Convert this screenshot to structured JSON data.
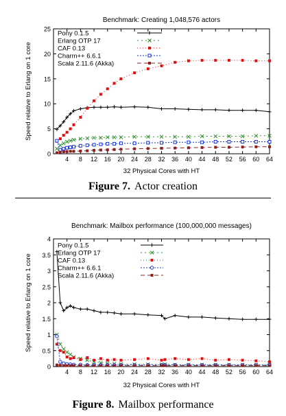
{
  "figures": [
    {
      "caption_label": "Figure 7.",
      "caption_text": "Actor creation",
      "chart_data": {
        "type": "line",
        "title": "Benchmark: Creating 1,048,576 actors",
        "xlabel": "32 Physical Cores with HT",
        "ylabel": "Speed relative to Erlang on 1 core",
        "xlim": [
          0,
          64
        ],
        "ylim": [
          0,
          25
        ],
        "xticks": [
          4,
          8,
          12,
          16,
          20,
          24,
          28,
          32,
          36,
          40,
          44,
          48,
          52,
          56,
          60,
          64
        ],
        "yticks": [
          0,
          5,
          10,
          15,
          20,
          25
        ],
        "grid": false,
        "legend_position": "top-left",
        "x": [
          1,
          2,
          3,
          4,
          5,
          6,
          8,
          10,
          12,
          14,
          16,
          18,
          20,
          24,
          28,
          32,
          36,
          40,
          44,
          48,
          52,
          56,
          60,
          64
        ],
        "series": [
          {
            "name": "Pony 0.1.5",
            "color": "#000000",
            "marker": "plus",
            "dash": "",
            "values": [
              4.9,
              5.6,
              6.4,
              7.3,
              8.0,
              8.6,
              9.0,
              9.2,
              9.3,
              9.3,
              9.3,
              9.4,
              9.3,
              9.4,
              9.3,
              9.0,
              9.0,
              8.9,
              8.8,
              8.8,
              8.7,
              8.7,
              8.7,
              8.4
            ]
          },
          {
            "name": "Erlang OTP 17",
            "color": "#2f8f2f",
            "marker": "cross",
            "dash": "2,4",
            "values": [
              1.0,
              1.7,
              2.1,
              2.4,
              2.6,
              2.8,
              3.0,
              3.1,
              3.2,
              3.2,
              3.3,
              3.3,
              3.3,
              3.4,
              3.4,
              3.4,
              3.4,
              3.4,
              3.5,
              3.5,
              3.5,
              3.5,
              3.6,
              3.6
            ]
          },
          {
            "name": "CAF 0.13",
            "color": "#e01010",
            "marker": "square-filled",
            "dash": "1,3",
            "values": [
              2.5,
              3.0,
              3.7,
              4.3,
              5.0,
              5.8,
              7.3,
              9.1,
              10.6,
              11.9,
              13.0,
              14.1,
              15.0,
              16.2,
              17.0,
              17.6,
              18.3,
              18.6,
              18.7,
              18.7,
              18.7,
              18.7,
              18.6,
              18.6
            ]
          },
          {
            "name": "Charm++ 6.6.1",
            "color": "#1030e0",
            "marker": "square-open",
            "dash": "2,2",
            "values": [
              2.6,
              0.8,
              1.0,
              1.2,
              1.3,
              1.4,
              1.6,
              1.7,
              1.8,
              1.9,
              2.0,
              2.0,
              2.1,
              2.1,
              2.2,
              2.2,
              2.3,
              2.3,
              2.3,
              2.4,
              2.4,
              2.4,
              2.4,
              2.4
            ]
          },
          {
            "name": "Scala 2.11.6 (Akka)",
            "color": "#8b2020",
            "marker": "square-filled",
            "dash": "6,4",
            "values": [
              0.2,
              0.3,
              0.4,
              0.45,
              0.5,
              0.5,
              0.55,
              0.6,
              0.7,
              0.75,
              0.8,
              0.85,
              0.9,
              1.0,
              1.05,
              1.1,
              1.15,
              1.2,
              1.25,
              1.3,
              1.3,
              1.35,
              1.4,
              1.4
            ]
          }
        ]
      }
    },
    {
      "caption_label": "Figure 8.",
      "caption_text": "Mailbox performance",
      "chart_data": {
        "type": "line",
        "title": "Benchmark: Mailbox performance (100,000,000 messages)",
        "xlabel": "32 Physical Cores with HT",
        "ylabel": "Speed relative to Erlang on 1 core",
        "xlim": [
          0,
          64
        ],
        "ylim": [
          0,
          4
        ],
        "xticks": [
          4,
          8,
          12,
          16,
          20,
          24,
          28,
          32,
          36,
          40,
          44,
          48,
          52,
          56,
          60,
          64
        ],
        "yticks": [
          0,
          0.5,
          1,
          1.5,
          2,
          2.5,
          3,
          3.5,
          4
        ],
        "grid": false,
        "legend_position": "top-left",
        "x": [
          1,
          2,
          3,
          4,
          5,
          6,
          8,
          10,
          12,
          14,
          16,
          18,
          20,
          24,
          28,
          32,
          33,
          36,
          40,
          44,
          48,
          52,
          56,
          60,
          64
        ],
        "series": [
          {
            "name": "Pony 0.1.5",
            "color": "#000000",
            "marker": "plus",
            "dash": "",
            "values": [
              3.6,
              2.0,
              1.75,
              1.85,
              1.9,
              1.85,
              1.8,
              1.8,
              1.75,
              1.7,
              1.7,
              1.68,
              1.65,
              1.65,
              1.62,
              1.6,
              1.5,
              1.6,
              1.55,
              1.55,
              1.52,
              1.5,
              1.48,
              1.48,
              1.48
            ]
          },
          {
            "name": "Erlang OTP 17",
            "color": "#2f8f2f",
            "marker": "cross",
            "dash": "2,4",
            "values": [
              1.0,
              0.7,
              0.55,
              0.45,
              0.38,
              0.3,
              0.25,
              0.2,
              0.15,
              0.12,
              0.1,
              0.09,
              0.08,
              0.07,
              0.07,
              0.07,
              0.07,
              0.06,
              0.06,
              0.06,
              0.06,
              0.06,
              0.06,
              0.06,
              0.06
            ]
          },
          {
            "name": "CAF 0.13",
            "color": "#e01010",
            "marker": "square-filled",
            "dash": "1,3",
            "values": [
              0.7,
              0.5,
              0.45,
              0.3,
              0.25,
              0.28,
              0.22,
              0.28,
              0.2,
              0.25,
              0.2,
              0.22,
              0.2,
              0.22,
              0.25,
              0.2,
              0.22,
              0.25,
              0.22,
              0.25,
              0.2,
              0.22,
              0.2,
              0.18,
              0.15
            ]
          },
          {
            "name": "Charm++ 6.6.1",
            "color": "#1030e0",
            "marker": "circle-open",
            "dash": "2,2",
            "values": [
              0.95,
              0.15,
              0.1,
              0.08,
              0.07,
              0.06,
              0.06,
              0.05,
              0.05,
              0.05,
              0.05,
              0.05,
              0.05,
              0.05,
              0.05,
              0.05,
              0.05,
              0.05,
              0.05,
              0.05,
              0.05,
              0.05,
              0.05,
              0.05,
              0.05
            ]
          },
          {
            "name": "Scala 2.11.6 (Akka)",
            "color": "#8b2020",
            "marker": "square-filled",
            "dash": "6,4",
            "values": [
              0.05,
              0.04,
              0.03,
              0.03,
              0.03,
              0.03,
              0.03,
              0.03,
              0.03,
              0.03,
              0.03,
              0.03,
              0.03,
              0.03,
              0.03,
              0.03,
              0.03,
              0.03,
              0.03,
              0.03,
              0.03,
              0.03,
              0.03,
              0.03,
              0.03
            ]
          }
        ]
      }
    }
  ]
}
